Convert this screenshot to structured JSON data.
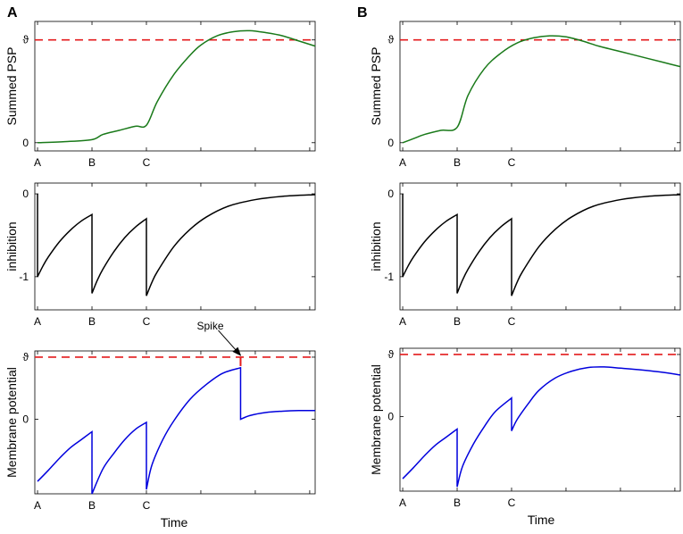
{
  "panels": [
    {
      "id": "A",
      "label": "A",
      "x_label": "Time"
    },
    {
      "id": "B",
      "label": "B",
      "x_label": "Time"
    }
  ],
  "colors": {
    "psp": "#1a7a1a",
    "inhibition": "#000000",
    "membrane": "#0000dd",
    "threshold": "#e41a1c",
    "spike": "#e41a1c"
  },
  "chart_data": [
    {
      "type": "line",
      "panel": "A",
      "row": "psp",
      "ylabel": "Summed PSP",
      "ylim": [
        -0.08,
        1.18
      ],
      "y_ticks": [
        {
          "v": 0,
          "label": "0"
        },
        {
          "v": 1,
          "label": "ϑ"
        }
      ],
      "x_ticks": [
        0,
        1,
        2,
        3,
        4,
        5
      ],
      "x_range": [
        -0.05,
        5.1
      ],
      "x_tick_labels": [
        "A",
        "B",
        "C"
      ],
      "threshold": 1,
      "series": [
        {
          "name": "Summed PSP",
          "x": [
            0,
            0.5,
            1,
            1.2,
            1.5,
            1.8,
            2,
            2.2,
            2.5,
            2.8,
            3,
            3.3,
            3.6,
            3.9,
            4.2,
            4.5,
            4.8,
            5.1
          ],
          "y": [
            0,
            0.01,
            0.03,
            0.08,
            0.12,
            0.16,
            0.17,
            0.4,
            0.66,
            0.85,
            0.95,
            1.04,
            1.08,
            1.09,
            1.07,
            1.04,
            0.99,
            0.94
          ]
        }
      ]
    },
    {
      "type": "line",
      "panel": "A",
      "row": "inhibition",
      "ylabel": "inhibition",
      "ylim": [
        -1.4,
        0.13
      ],
      "y_ticks": [
        {
          "v": 0,
          "label": "0"
        },
        {
          "v": -1,
          "label": "-1"
        }
      ],
      "x_ticks": [
        0,
        1,
        2,
        3,
        4,
        5
      ],
      "x_range": [
        -0.05,
        5.1
      ],
      "x_tick_labels": [
        "A",
        "B",
        "C"
      ],
      "series": [
        {
          "name": "inhibition",
          "x": [
            0,
            0,
            0.1,
            0.2,
            0.4,
            0.6,
            0.8,
            1,
            1,
            1.1,
            1.2,
            1.4,
            1.6,
            1.8,
            2,
            2,
            2.1,
            2.2,
            2.5,
            2.8,
            3.1,
            3.5,
            4,
            4.5,
            5.1
          ],
          "y": [
            0,
            -1,
            -0.87,
            -0.76,
            -0.58,
            -0.44,
            -0.33,
            -0.25,
            -1.2,
            -1.04,
            -0.91,
            -0.7,
            -0.53,
            -0.4,
            -0.3,
            -1.23,
            -1.07,
            -0.94,
            -0.64,
            -0.43,
            -0.28,
            -0.15,
            -0.07,
            -0.03,
            -0.01
          ]
        }
      ]
    },
    {
      "type": "line",
      "panel": "A",
      "row": "membrane",
      "ylabel": "Membrane potential",
      "ylim": [
        -1.2,
        1.1
      ],
      "y_ticks": [
        {
          "v": 0,
          "label": "0"
        },
        {
          "v": 1,
          "label": "ϑ"
        }
      ],
      "x_ticks": [
        0,
        1,
        2,
        3,
        4,
        5
      ],
      "x_range": [
        -0.05,
        5.1
      ],
      "x_tick_labels": [
        "A",
        "B",
        "C"
      ],
      "xlabel": "Time",
      "threshold": 1,
      "annotation": {
        "text": "Spike",
        "x": 3.73,
        "y": 1.0
      },
      "series": [
        {
          "name": "Membrane potential",
          "x": [
            0,
            0.2,
            0.4,
            0.6,
            0.8,
            1,
            1,
            1.2,
            1.4,
            1.6,
            1.8,
            2,
            2,
            2.1,
            2.3,
            2.5,
            2.8,
            3.1,
            3.4,
            3.73,
            3.73,
            3.9,
            4.2,
            4.5,
            4.8,
            5.1
          ],
          "y": [
            -1,
            -0.82,
            -0.63,
            -0.46,
            -0.33,
            -0.2,
            -1.2,
            -0.8,
            -0.55,
            -0.33,
            -0.16,
            -0.05,
            -1.13,
            -0.74,
            -0.33,
            -0.03,
            0.32,
            0.56,
            0.74,
            0.83,
            0,
            0.06,
            0.11,
            0.13,
            0.14,
            0.14
          ]
        }
      ]
    },
    {
      "type": "line",
      "panel": "B",
      "row": "psp",
      "ylabel": "Summed PSP",
      "ylim": [
        -0.08,
        1.18
      ],
      "y_ticks": [
        {
          "v": 0,
          "label": "0"
        },
        {
          "v": 1,
          "label": "ϑ"
        }
      ],
      "x_ticks": [
        0,
        1,
        2,
        3,
        4,
        5
      ],
      "x_range": [
        -0.05,
        5.1
      ],
      "x_tick_labels": [
        "A",
        "B",
        "C"
      ],
      "threshold": 1,
      "series": [
        {
          "name": "Summed PSP",
          "x": [
            0,
            0.2,
            0.4,
            0.7,
            1,
            1.2,
            1.5,
            1.8,
            2.1,
            2.4,
            2.7,
            3,
            3.3,
            3.6,
            3.9,
            4.2,
            4.5,
            4.8,
            5.1
          ],
          "y": [
            0,
            0.04,
            0.08,
            0.12,
            0.15,
            0.46,
            0.72,
            0.87,
            0.97,
            1.02,
            1.04,
            1.03,
            0.99,
            0.94,
            0.9,
            0.86,
            0.82,
            0.78,
            0.74
          ]
        }
      ]
    },
    {
      "type": "line",
      "panel": "B",
      "row": "inhibition",
      "ylabel": "inhibition",
      "ylim": [
        -1.4,
        0.13
      ],
      "y_ticks": [
        {
          "v": 0,
          "label": "0"
        },
        {
          "v": -1,
          "label": "-1"
        }
      ],
      "x_ticks": [
        0,
        1,
        2,
        3,
        4,
        5
      ],
      "x_range": [
        -0.05,
        5.1
      ],
      "x_tick_labels": [
        "A",
        "B",
        "C"
      ],
      "series": [
        {
          "name": "inhibition",
          "x": [
            0,
            0,
            0.1,
            0.2,
            0.4,
            0.6,
            0.8,
            1,
            1,
            1.1,
            1.2,
            1.4,
            1.6,
            1.8,
            2,
            2,
            2.1,
            2.2,
            2.5,
            2.8,
            3.1,
            3.5,
            4,
            4.5,
            5.1
          ],
          "y": [
            0,
            -1,
            -0.87,
            -0.76,
            -0.58,
            -0.44,
            -0.33,
            -0.25,
            -1.2,
            -1.04,
            -0.91,
            -0.7,
            -0.53,
            -0.4,
            -0.3,
            -1.23,
            -1.07,
            -0.94,
            -0.64,
            -0.43,
            -0.28,
            -0.15,
            -0.07,
            -0.03,
            -0.01
          ]
        }
      ]
    },
    {
      "type": "line",
      "panel": "B",
      "row": "membrane",
      "ylabel": "Membrane potential",
      "ylim": [
        -1.2,
        1.1
      ],
      "y_ticks": [
        {
          "v": 0,
          "label": "0"
        },
        {
          "v": 1,
          "label": "ϑ"
        }
      ],
      "x_ticks": [
        0,
        1,
        2,
        3,
        4,
        5
      ],
      "x_range": [
        -0.05,
        5.1
      ],
      "x_tick_labels": [
        "A",
        "B",
        "C"
      ],
      "xlabel": "Time",
      "threshold": 1,
      "series": [
        {
          "name": "Membrane potential",
          "x": [
            0,
            0.2,
            0.4,
            0.6,
            0.8,
            1,
            1,
            1.1,
            1.3,
            1.5,
            1.7,
            2,
            2,
            2.1,
            2.3,
            2.5,
            2.8,
            3.1,
            3.4,
            3.7,
            4,
            4.4,
            4.8,
            5.1
          ],
          "y": [
            -1,
            -0.82,
            -0.63,
            -0.46,
            -0.33,
            -0.2,
            -1.13,
            -0.8,
            -0.44,
            -0.16,
            0.08,
            0.3,
            -0.23,
            -0.05,
            0.2,
            0.42,
            0.62,
            0.73,
            0.79,
            0.8,
            0.78,
            0.75,
            0.71,
            0.67
          ]
        }
      ]
    }
  ]
}
